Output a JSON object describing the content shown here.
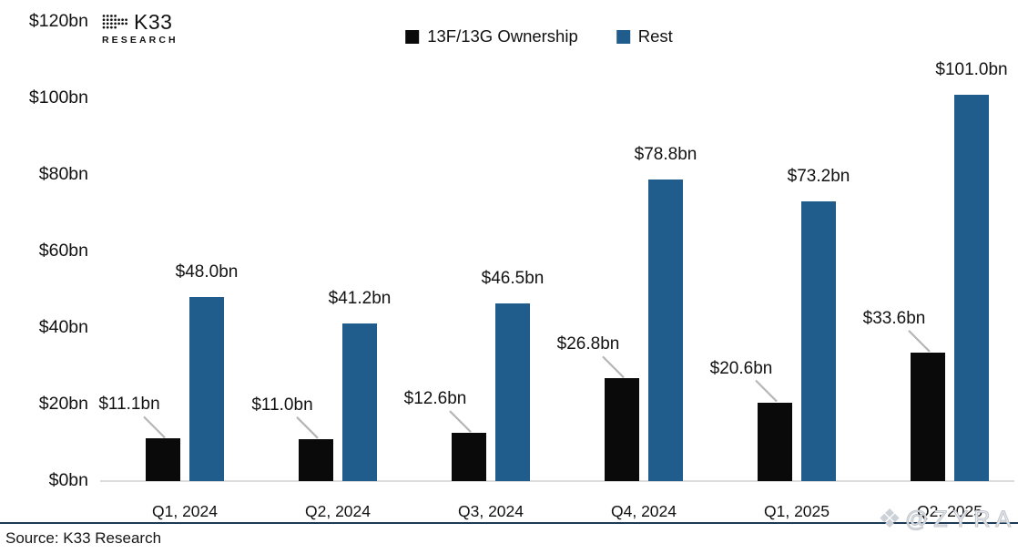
{
  "brand": {
    "logo_text": "K33",
    "logo_subtext": "RESEARCH"
  },
  "legend": {
    "items": [
      {
        "label": "13F/13G Ownership",
        "color": "#0a0a0a"
      },
      {
        "label": "Rest",
        "color": "#205c8c"
      }
    ]
  },
  "footer": {
    "source": "Source: K33 Research",
    "watermark": "@ZYRA"
  },
  "chart_data": {
    "type": "bar",
    "title": "",
    "categories": [
      "Q1, 2024",
      "Q2, 2024",
      "Q3, 2024",
      "Q4, 2024",
      "Q1, 2025",
      "Q2, 2025"
    ],
    "series": [
      {
        "name": "13F/13G Ownership",
        "color": "#0a0a0a",
        "values": [
          11.1,
          11.0,
          12.6,
          26.8,
          20.6,
          33.6
        ]
      },
      {
        "name": "Rest",
        "color": "#205c8c",
        "values": [
          48.0,
          41.2,
          46.5,
          78.8,
          73.2,
          101.0
        ]
      }
    ],
    "data_labels": {
      "ownership": [
        "$11.1bn",
        "$11.0bn",
        "$12.6bn",
        "$26.8bn",
        "$20.6bn",
        "$33.6bn"
      ],
      "rest": [
        "$48.0bn",
        "$41.2bn",
        "$46.5bn",
        "$78.8bn",
        "$73.2bn",
        "$101.0bn"
      ]
    },
    "unit_prefix": "$",
    "unit_suffix": "bn",
    "y_ticks": [
      "$0bn",
      "$20bn",
      "$40bn",
      "$60bn",
      "$80bn",
      "$100bn",
      "$120bn"
    ],
    "ylim": [
      0,
      120
    ],
    "grid": false,
    "legend_position": "top-center",
    "leader_line_color": "#b5b5b5",
    "axis_line_color": "#dcdcdc"
  }
}
